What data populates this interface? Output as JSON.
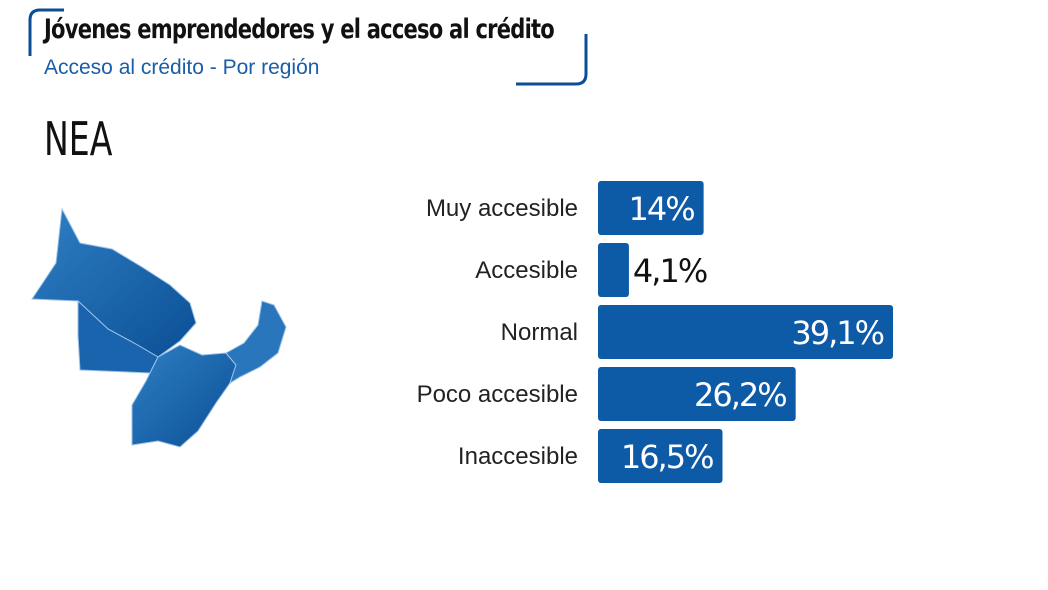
{
  "header": {
    "title": "Jóvenes emprendedores y el acceso al crédito",
    "subtitle": "Acceso al crédito - Por región"
  },
  "region": "NEA",
  "colors": {
    "accent": "#0d5aa7",
    "text": "#222222",
    "frame": "#0d4c96"
  },
  "chart_data": {
    "type": "bar",
    "orientation": "horizontal",
    "categories": [
      "Muy accesible",
      "Accesible",
      "Normal",
      "Poco accesible",
      "Inaccesible"
    ],
    "values": [
      14,
      4.1,
      39.1,
      26.2,
      16.5
    ],
    "value_labels": [
      "14%",
      "4,1%",
      "39,1%",
      "26,2%",
      "16,5%"
    ],
    "unit": "%",
    "title": "",
    "xlabel": "",
    "ylabel": "",
    "xlim": [
      0,
      39.1
    ],
    "grid": false,
    "legend": "none"
  }
}
